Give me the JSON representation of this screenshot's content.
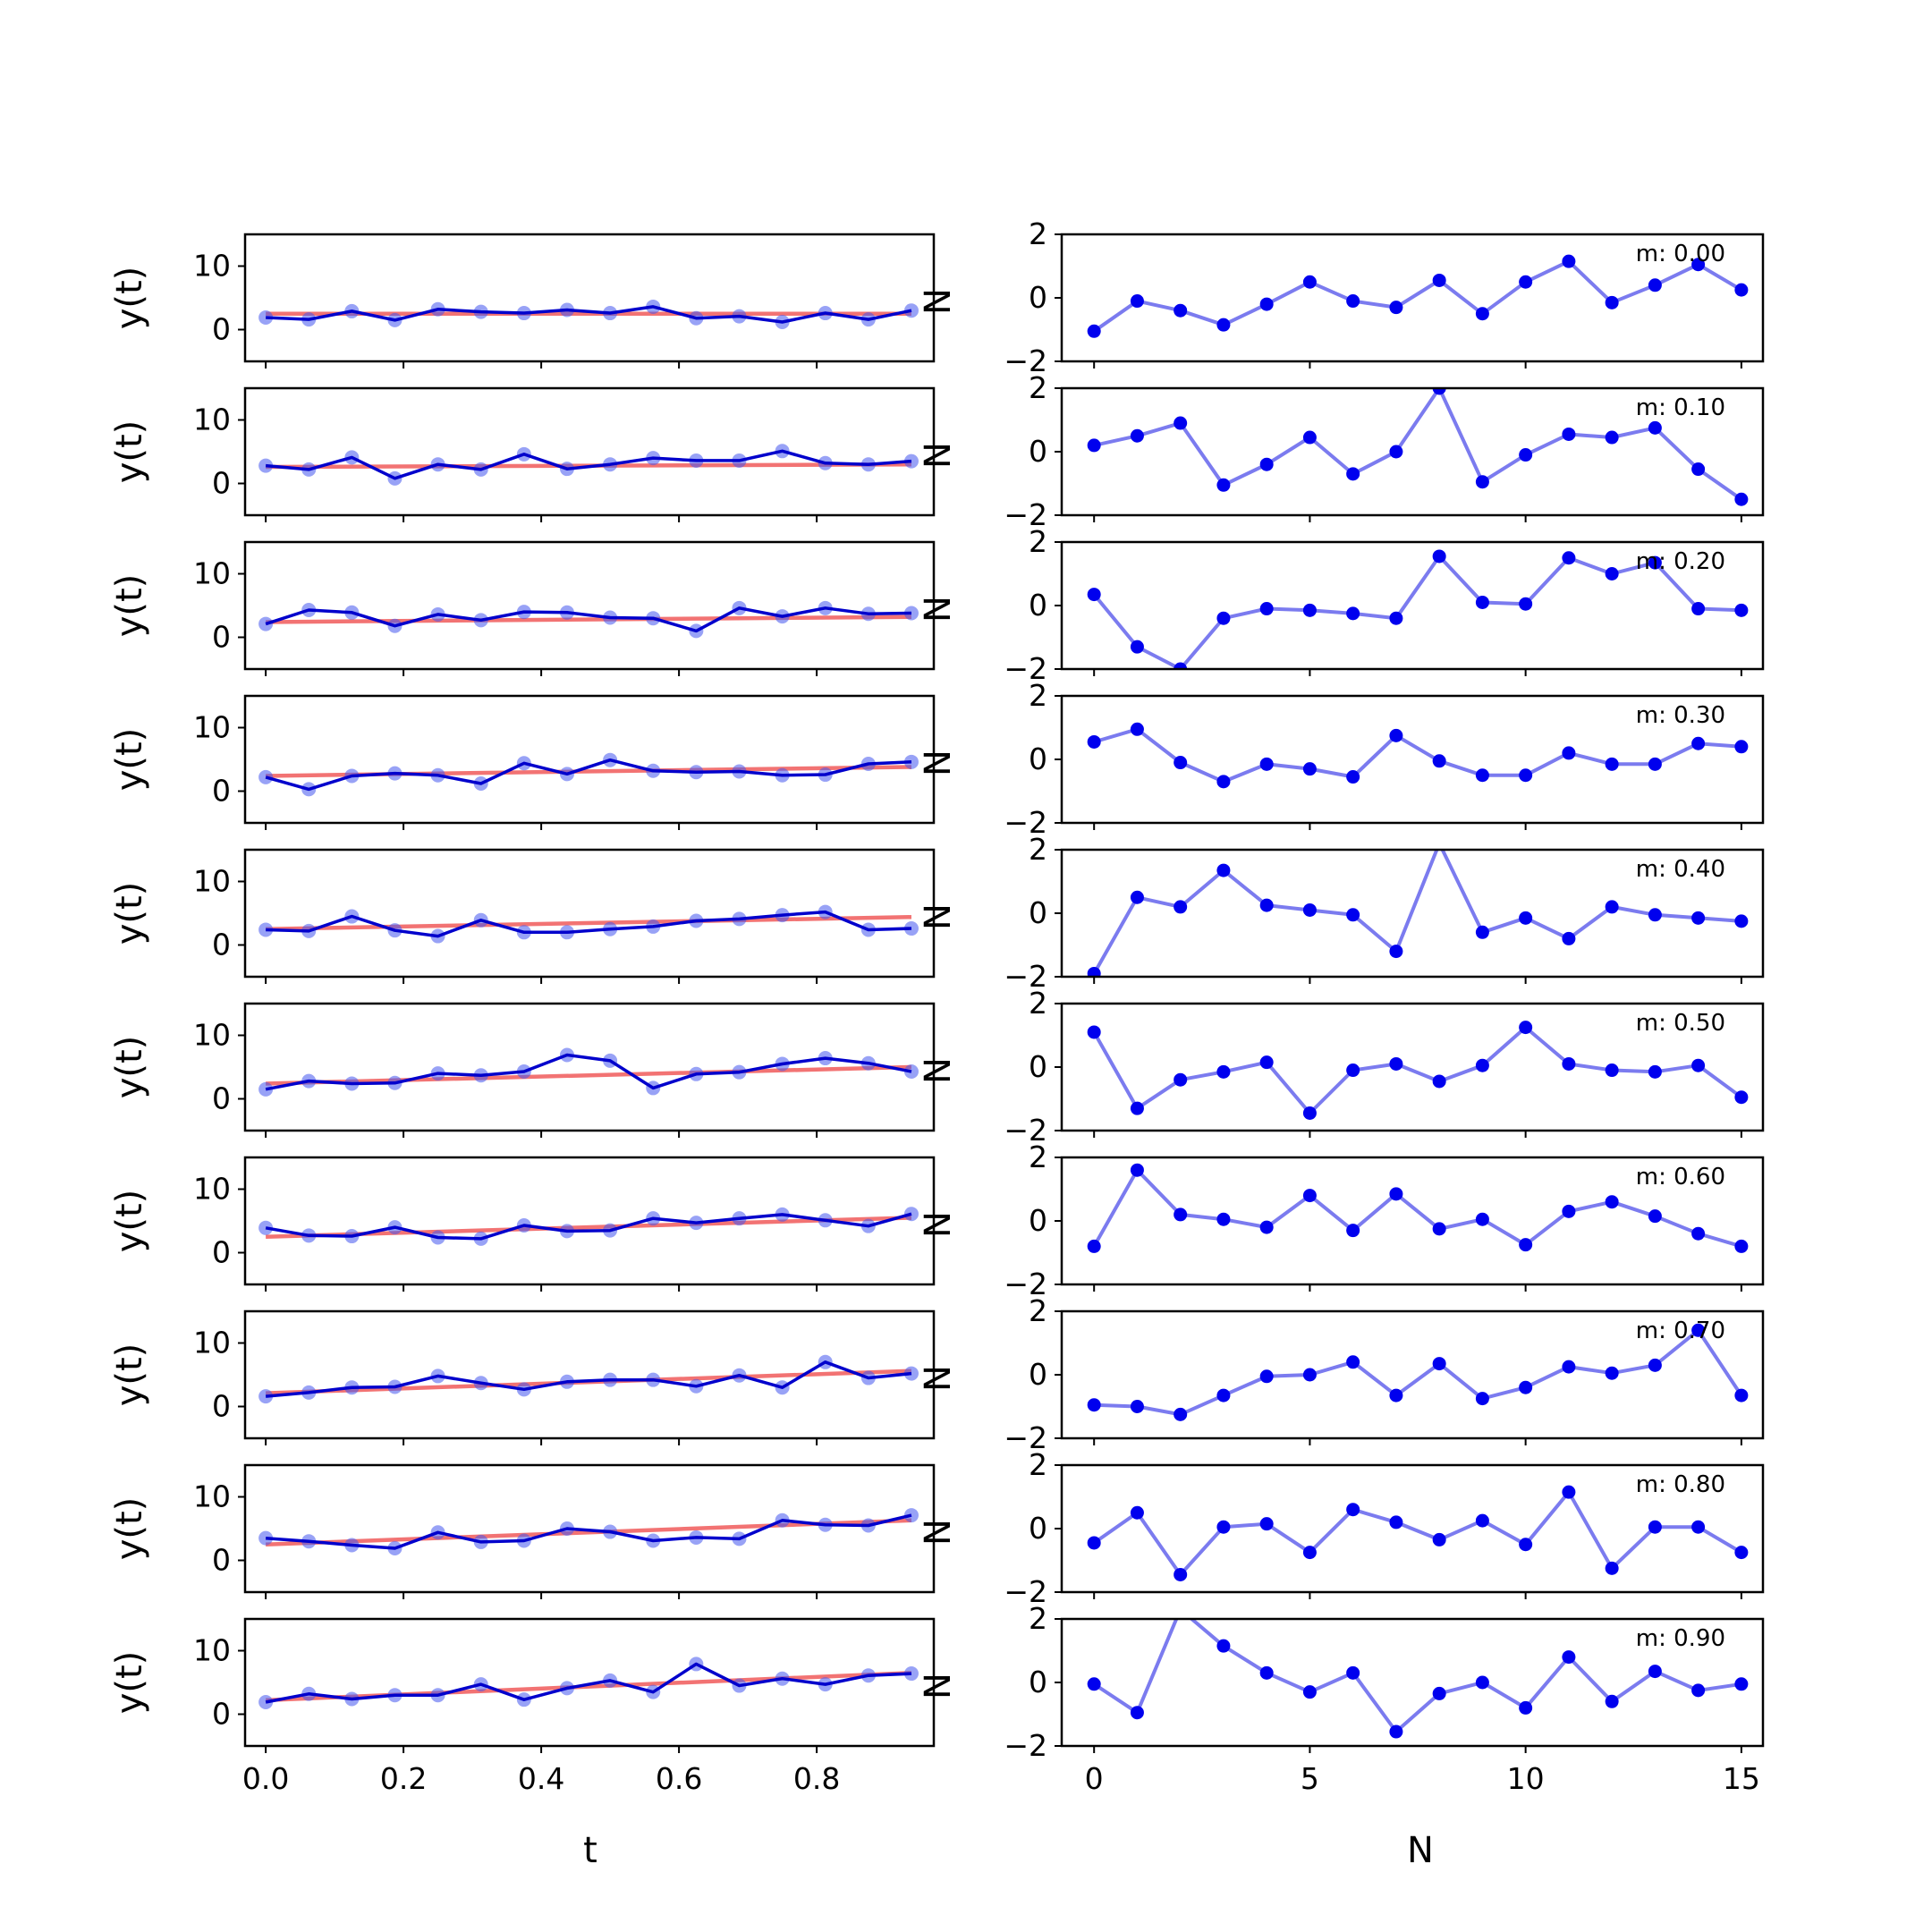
{
  "chart_data": [
    {
      "type": "line",
      "panel": "left",
      "xlabel": "t",
      "ylabel": "y(t)",
      "xlim": [
        -0.03,
        0.97
      ],
      "ylim": [
        -5,
        15
      ],
      "xticks": [
        "0.0",
        "0.2",
        "0.4",
        "0.6",
        "0.8"
      ],
      "yticks": [
        "0",
        "10"
      ],
      "t": [
        0.0,
        0.0625,
        0.125,
        0.1875,
        0.25,
        0.3125,
        0.375,
        0.4375,
        0.5,
        0.5625,
        0.625,
        0.6875,
        0.75,
        0.8125,
        0.875,
        0.9375
      ],
      "colors": {
        "data": "#0000cc",
        "markers": "#4455ee",
        "fit": "#ee4444"
      },
      "series": [
        {
          "m": 0.0,
          "fit": [
            2.5,
            2.5
          ],
          "values": [
            1.9,
            1.6,
            2.9,
            1.5,
            3.2,
            2.8,
            2.6,
            3.1,
            2.6,
            3.6,
            1.8,
            2.1,
            1.2,
            2.6,
            1.6,
            3.0
          ]
        },
        {
          "m": 0.1,
          "fit": [
            2.6,
            3.0
          ],
          "values": [
            2.8,
            2.2,
            4.1,
            0.8,
            3.0,
            2.2,
            4.6,
            2.3,
            3.0,
            4.0,
            3.6,
            3.6,
            5.1,
            3.2,
            3.0,
            3.5
          ]
        },
        {
          "m": 0.2,
          "fit": [
            2.4,
            3.2
          ],
          "values": [
            2.1,
            4.3,
            3.9,
            1.8,
            3.6,
            2.7,
            4.0,
            3.9,
            3.1,
            3.0,
            1.0,
            4.6,
            3.3,
            4.6,
            3.7,
            3.8
          ]
        },
        {
          "m": 0.3,
          "fit": [
            2.4,
            3.8
          ],
          "values": [
            2.2,
            0.3,
            2.4,
            2.8,
            2.5,
            1.2,
            4.4,
            2.7,
            4.9,
            3.2,
            3.0,
            3.1,
            2.5,
            2.6,
            4.3,
            4.6
          ]
        },
        {
          "m": 0.4,
          "fit": [
            2.5,
            4.4
          ],
          "values": [
            2.4,
            2.2,
            4.5,
            2.3,
            1.4,
            3.9,
            2.0,
            2.0,
            2.5,
            2.9,
            3.8,
            4.1,
            4.7,
            5.2,
            2.4,
            2.6
          ]
        },
        {
          "m": 0.5,
          "fit": [
            2.4,
            5.0
          ],
          "values": [
            1.5,
            2.8,
            2.4,
            2.5,
            4.0,
            3.7,
            4.3,
            6.9,
            6.0,
            1.7,
            3.9,
            4.2,
            5.5,
            6.4,
            5.6,
            4.3
          ]
        },
        {
          "m": 0.6,
          "fit": [
            2.5,
            5.5
          ],
          "values": [
            3.9,
            2.7,
            2.6,
            4.0,
            2.4,
            2.2,
            4.3,
            3.4,
            3.5,
            5.4,
            4.7,
            5.4,
            6.0,
            5.1,
            4.2,
            6.1
          ]
        },
        {
          "m": 0.7,
          "fit": [
            2.1,
            5.6
          ],
          "values": [
            1.6,
            2.2,
            3.0,
            3.1,
            4.8,
            3.7,
            2.7,
            3.9,
            4.2,
            4.2,
            3.2,
            4.9,
            3.0,
            7.0,
            4.5,
            5.2
          ]
        },
        {
          "m": 0.8,
          "fit": [
            2.5,
            6.3
          ],
          "values": [
            3.5,
            3.0,
            2.4,
            1.9,
            4.4,
            2.9,
            3.1,
            5.0,
            4.5,
            3.1,
            3.6,
            3.4,
            6.3,
            5.6,
            5.5,
            7.1
          ]
        },
        {
          "m": 0.9,
          "fit": [
            2.2,
            6.5
          ],
          "values": [
            1.9,
            3.2,
            2.4,
            3.0,
            3.0,
            4.7,
            2.3,
            4.1,
            5.3,
            3.5,
            7.9,
            4.5,
            5.6,
            4.7,
            6.1,
            6.4
          ]
        }
      ]
    },
    {
      "type": "line",
      "panel": "right",
      "xlabel": "N",
      "ylabel_clipped": "N",
      "xlim": [
        -0.75,
        15.5
      ],
      "ylim": [
        -2,
        2
      ],
      "xticks": [
        "0",
        "5",
        "10",
        "15"
      ],
      "yticks": [
        "−2",
        "0",
        "2"
      ],
      "x": [
        0,
        1,
        2,
        3,
        4,
        5,
        6,
        7,
        8,
        9,
        10,
        11,
        12,
        13,
        14,
        15
      ],
      "colors": {
        "line": "#7b7bef",
        "markers": "#0000ee"
      },
      "series": [
        {
          "label": "m: 0.00",
          "values": [
            -1.05,
            -0.1,
            -0.4,
            -0.85,
            -0.2,
            0.5,
            -0.1,
            -0.3,
            0.55,
            -0.5,
            0.5,
            1.15,
            -0.15,
            0.4,
            1.05,
            0.25
          ]
        },
        {
          "label": "m: 0.10",
          "values": [
            0.2,
            0.5,
            0.9,
            -1.05,
            -0.4,
            0.45,
            -0.7,
            0.0,
            2.0,
            -0.95,
            -0.1,
            0.55,
            0.45,
            0.75,
            -0.55,
            -1.5
          ]
        },
        {
          "label": "m: 0.20",
          "values": [
            0.35,
            -1.3,
            -2.0,
            -0.4,
            -0.1,
            -0.15,
            -0.25,
            -0.4,
            1.55,
            0.1,
            0.05,
            1.5,
            1.0,
            1.35,
            -0.1,
            -0.15
          ]
        },
        {
          "label": "m: 0.30",
          "values": [
            0.55,
            0.95,
            -0.1,
            -0.7,
            -0.15,
            -0.3,
            -0.55,
            0.75,
            -0.05,
            -0.5,
            -0.5,
            0.2,
            -0.15,
            -0.15,
            0.5,
            0.4
          ]
        },
        {
          "label": "m: 0.40",
          "values": [
            -1.9,
            0.5,
            0.2,
            1.35,
            0.25,
            0.1,
            -0.05,
            -1.2,
            2.2,
            -0.6,
            -0.15,
            -0.8,
            0.2,
            -0.05,
            -0.15,
            -0.25
          ]
        },
        {
          "label": "m: 0.50",
          "values": [
            1.1,
            -1.3,
            -0.4,
            -0.15,
            0.15,
            -1.45,
            -0.1,
            0.1,
            -0.45,
            0.05,
            1.25,
            0.1,
            -0.1,
            -0.15,
            0.05,
            -0.95
          ]
        },
        {
          "label": "m: 0.60",
          "values": [
            -0.8,
            1.6,
            0.2,
            0.05,
            -0.2,
            0.8,
            -0.3,
            0.85,
            -0.25,
            0.05,
            -0.75,
            0.3,
            0.6,
            0.15,
            -0.4,
            -0.8
          ]
        },
        {
          "label": "m: 0.70",
          "values": [
            -0.95,
            -1.0,
            -1.25,
            -0.65,
            -0.05,
            0.0,
            0.4,
            -0.65,
            0.35,
            -0.75,
            -0.4,
            0.25,
            0.05,
            0.3,
            1.4,
            -0.65
          ]
        },
        {
          "label": "m: 0.80",
          "values": [
            -0.45,
            0.5,
            -1.45,
            0.05,
            0.15,
            -0.75,
            0.6,
            0.2,
            -0.35,
            0.25,
            -0.5,
            1.15,
            -1.25,
            0.05,
            0.05,
            -0.75
          ]
        },
        {
          "label": "m: 0.90",
          "values": [
            -0.05,
            -0.95,
            2.3,
            1.15,
            0.3,
            -0.3,
            0.3,
            -1.55,
            -0.35,
            0.0,
            -0.8,
            0.8,
            -0.6,
            0.35,
            -0.25,
            -0.05
          ]
        }
      ]
    }
  ]
}
